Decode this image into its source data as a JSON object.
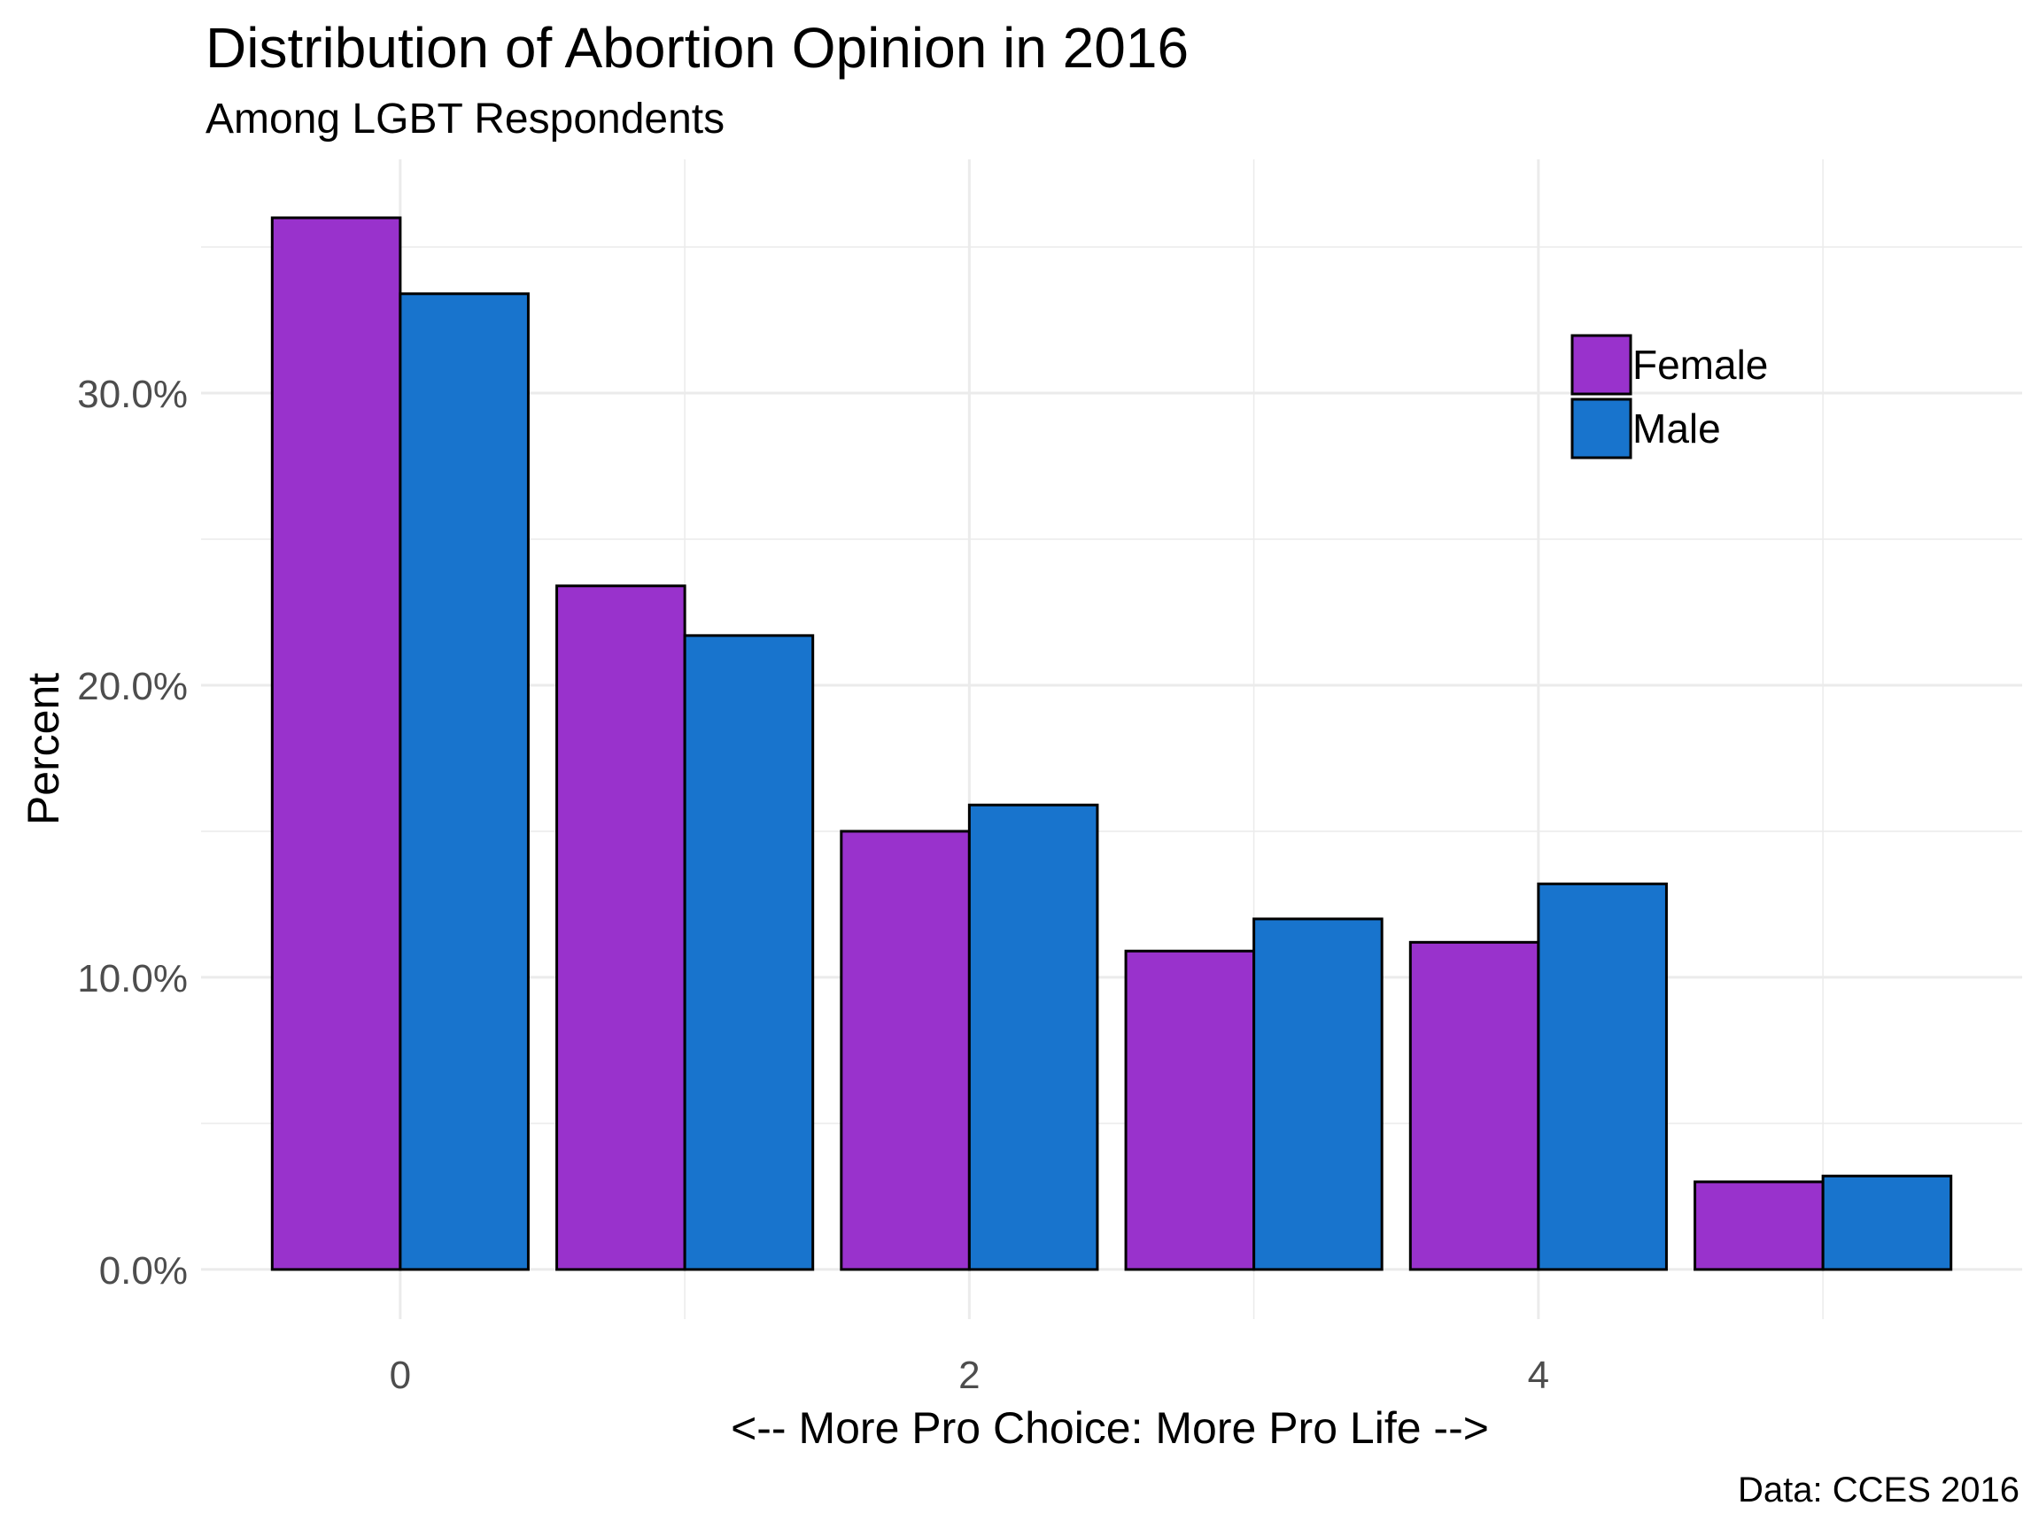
{
  "chart_data": {
    "type": "bar",
    "title": "Distribution of Abortion Opinion in 2016",
    "subtitle": "Among LGBT Respondents",
    "xlabel": "<-- More Pro Choice: More Pro Life -->",
    "ylabel": "Percent",
    "caption": "Data: CCES 2016",
    "categories": [
      0,
      1,
      2,
      3,
      4,
      5
    ],
    "x_ticks": [
      "0",
      "2",
      "4"
    ],
    "x_tick_values": [
      0,
      2,
      4
    ],
    "y_ticks": [
      "0.0%",
      "10.0%",
      "20.0%",
      "30.0%"
    ],
    "y_tick_values": [
      0,
      10,
      20,
      30
    ],
    "xlim": [
      -0.7,
      5.7
    ],
    "ylim": [
      -1.7,
      38
    ],
    "grid": true,
    "legend_position": "top-right",
    "series": [
      {
        "name": "Female",
        "color": "#9932CC",
        "values": [
          36.0,
          23.4,
          15.0,
          10.9,
          11.2,
          3.0
        ]
      },
      {
        "name": "Male",
        "color": "#1874CD",
        "values": [
          33.4,
          21.7,
          15.9,
          12.0,
          13.2,
          3.2
        ]
      }
    ]
  }
}
